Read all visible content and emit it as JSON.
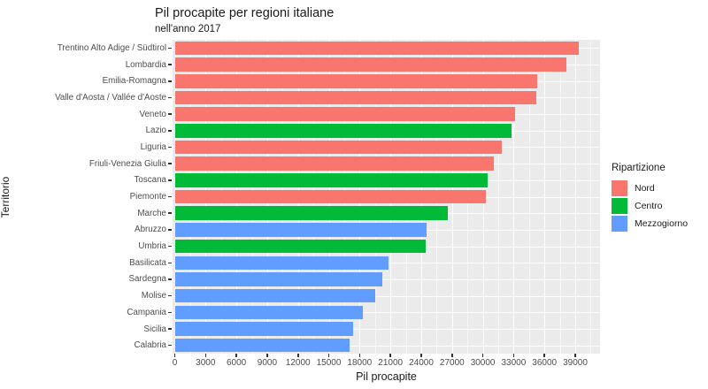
{
  "chart_data": {
    "type": "bar",
    "orientation": "horizontal",
    "title": "Pil procapite per regioni italiane",
    "subtitle": "nell'anno 2017",
    "xlabel": "Pil procapite",
    "ylabel": "Territorio",
    "categories": [
      "Trentino Alto Adige / Südtirol",
      "Lombardia",
      "Emilia-Romagna",
      "Valle d'Aosta / Vallée d'Aoste",
      "Veneto",
      "Lazio",
      "Liguria",
      "Friuli-Venezia Giulia",
      "Toscana",
      "Piemonte",
      "Marche",
      "Abruzzo",
      "Umbria",
      "Basilicata",
      "Sardegna",
      "Molise",
      "Campania",
      "Sicilia",
      "Calabria"
    ],
    "values": [
      39300,
      38100,
      35300,
      35200,
      33100,
      32800,
      31800,
      31100,
      30500,
      30300,
      26600,
      24500,
      24400,
      20800,
      20200,
      19500,
      18300,
      17400,
      17000
    ],
    "groups": [
      "Nord",
      "Nord",
      "Nord",
      "Nord",
      "Nord",
      "Centro",
      "Nord",
      "Nord",
      "Centro",
      "Nord",
      "Centro",
      "Mezzogiorno",
      "Centro",
      "Mezzogiorno",
      "Mezzogiorno",
      "Mezzogiorno",
      "Mezzogiorno",
      "Mezzogiorno",
      "Mezzogiorno"
    ],
    "group_colors": {
      "Nord": "#F8766D",
      "Centro": "#00BA38",
      "Mezzogiorno": "#619CFF"
    },
    "xlim": [
      0,
      39000
    ],
    "xticks": [
      0,
      3000,
      6000,
      9000,
      12000,
      15000,
      18000,
      21000,
      24000,
      27000,
      30000,
      33000,
      36000,
      39000
    ],
    "minor_tick_step": 1500,
    "grid": "on",
    "panel_background": "#EBEBEB",
    "grid_color": "#FFFFFF",
    "legend": {
      "title": "Ripartizione",
      "position": "right",
      "entries": [
        {
          "label": "Nord",
          "color": "#F8766D"
        },
        {
          "label": "Centro",
          "color": "#00BA38"
        },
        {
          "label": "Mezzogiorno",
          "color": "#619CFF"
        }
      ]
    }
  }
}
